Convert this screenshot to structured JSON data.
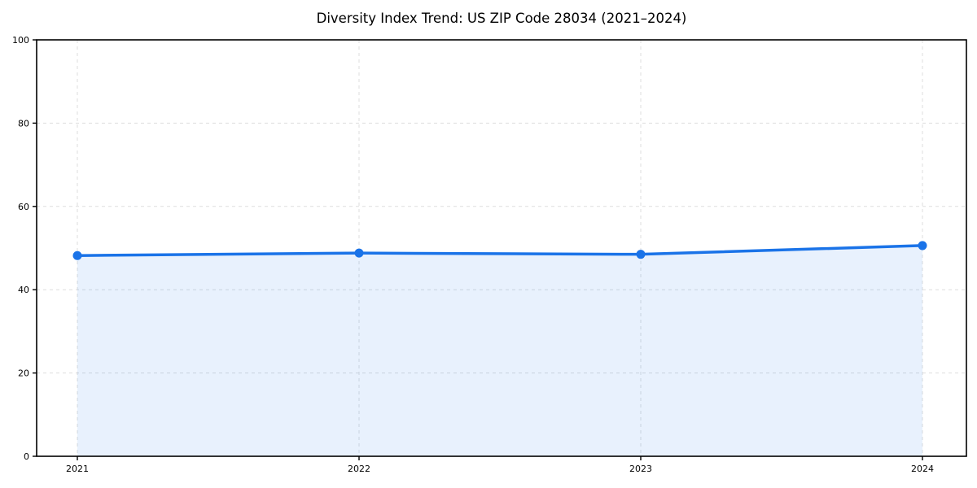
{
  "chart_data": {
    "type": "area",
    "title": "Diversity Index Trend: US ZIP Code 28034 (2021–2024)",
    "xlabel": "",
    "ylabel": "",
    "x": [
      2021,
      2022,
      2023,
      2024
    ],
    "xtick_labels": [
      "2021",
      "2022",
      "2023",
      "2024"
    ],
    "series": [
      {
        "name": "Diversity Index",
        "values": [
          48.2,
          48.8,
          48.5,
          50.6
        ]
      }
    ],
    "ylim": [
      0,
      100
    ],
    "yticks": [
      0,
      20,
      40,
      60,
      80,
      100
    ],
    "grid": "dashed-both-axes",
    "legend": "none",
    "colors": {
      "line": "#1a73e8",
      "marker": "#1a73e8",
      "area_fill": "rgba(26, 115, 232, 0.10)",
      "grid": "#dddddd",
      "spine": "#000000",
      "tick": "#000000",
      "text": "#000000",
      "background": "#ffffff"
    }
  }
}
